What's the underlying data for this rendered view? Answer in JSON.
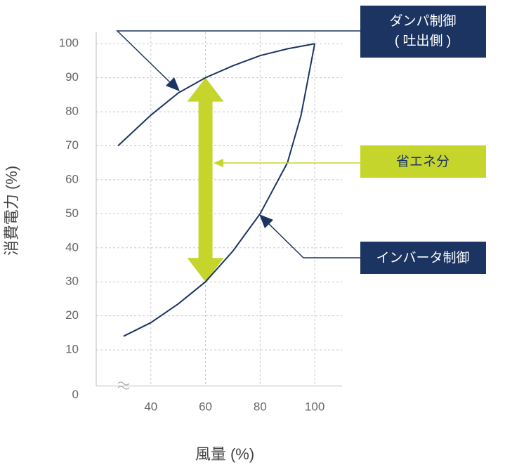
{
  "chart_data": {
    "type": "line",
    "x_label": "風量 (%)",
    "y_label": "消費電力 (%)",
    "xlim": [
      20,
      110
    ],
    "ylim": [
      0,
      105
    ],
    "xticks": [
      40,
      60,
      80,
      100
    ],
    "yticks": [
      0,
      10,
      20,
      30,
      40,
      50,
      60,
      70,
      80,
      90,
      100
    ],
    "grid": true,
    "series": [
      {
        "name": "ダンパ制御",
        "subname": "( 吐出側 )",
        "color": "#1c3461",
        "x": [
          28,
          40,
          50,
          60,
          70,
          80,
          90,
          100
        ],
        "values": [
          70,
          79,
          85.5,
          90,
          93.5,
          96.5,
          98.5,
          100
        ]
      },
      {
        "name": "インバータ制御",
        "color": "#1c3461",
        "x": [
          30,
          40,
          50,
          60,
          70,
          80,
          90,
          95,
          100
        ],
        "values": [
          14,
          18,
          23.5,
          30,
          39,
          50,
          65,
          79,
          100
        ]
      }
    ],
    "savings": {
      "label": "省エネ分",
      "x": 60,
      "from": 30,
      "to": 90,
      "color": "#c5d52b"
    }
  }
}
